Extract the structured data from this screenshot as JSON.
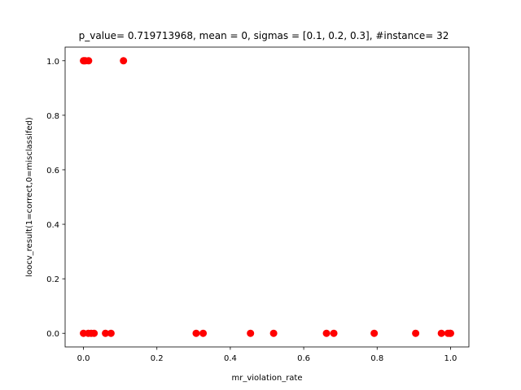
{
  "chart_data": {
    "type": "scatter",
    "title": "p_value= 0.719713968, mean = 0, sigmas = [0.1, 0.2, 0.3], #instance= 32",
    "xlabel": "mr_violation_rate",
    "ylabel": "loocv_result(1=correct,0=misclassifed)",
    "xlim": [
      -0.05,
      1.05
    ],
    "ylim": [
      -0.05,
      1.05
    ],
    "xticks": [
      0.0,
      0.2,
      0.4,
      0.6,
      0.8,
      1.0
    ],
    "xtick_labels": [
      "0.0",
      "0.2",
      "0.4",
      "0.6",
      "0.8",
      "1.0"
    ],
    "yticks": [
      0.0,
      0.2,
      0.4,
      0.6,
      0.8,
      1.0
    ],
    "ytick_labels": [
      "0.0",
      "0.2",
      "0.4",
      "0.6",
      "0.8",
      "1.0"
    ],
    "grid": false,
    "marker_color": "#ff0000",
    "series": [
      {
        "points": [
          {
            "x": 0.0,
            "y": 1
          },
          {
            "x": 0.002,
            "y": 1
          },
          {
            "x": 0.005,
            "y": 1
          },
          {
            "x": 0.014,
            "y": 1
          },
          {
            "x": 0.109,
            "y": 1
          },
          {
            "x": 0.0,
            "y": 0
          },
          {
            "x": 0.013,
            "y": 0
          },
          {
            "x": 0.021,
            "y": 0
          },
          {
            "x": 0.029,
            "y": 0
          },
          {
            "x": 0.06,
            "y": 0
          },
          {
            "x": 0.075,
            "y": 0
          },
          {
            "x": 0.307,
            "y": 0
          },
          {
            "x": 0.326,
            "y": 0
          },
          {
            "x": 0.455,
            "y": 0
          },
          {
            "x": 0.518,
            "y": 0
          },
          {
            "x": 0.662,
            "y": 0
          },
          {
            "x": 0.682,
            "y": 0
          },
          {
            "x": 0.792,
            "y": 0
          },
          {
            "x": 0.905,
            "y": 0
          },
          {
            "x": 0.975,
            "y": 0
          },
          {
            "x": 0.993,
            "y": 0
          },
          {
            "x": 0.998,
            "y": 0
          },
          {
            "x": 1.0,
            "y": 0
          }
        ]
      }
    ]
  }
}
